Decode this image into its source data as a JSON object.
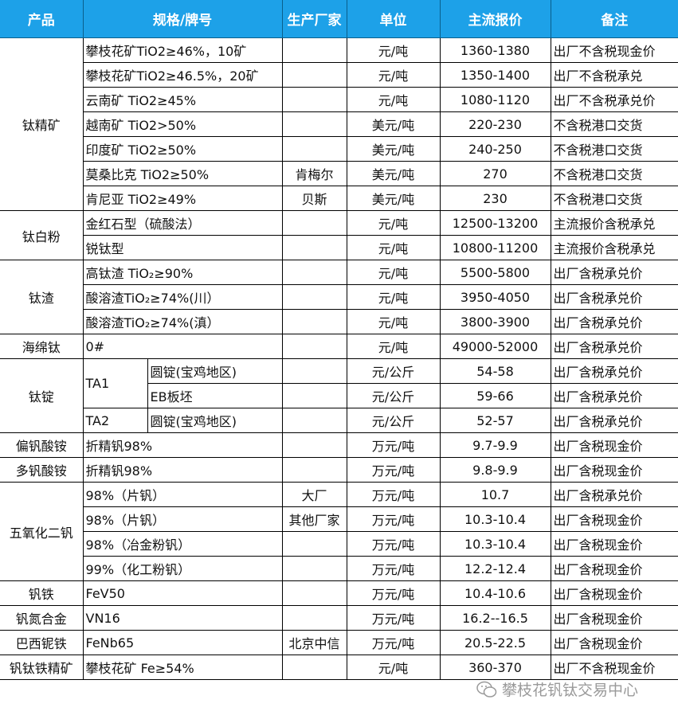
{
  "headers": [
    "产品",
    "规格/牌号",
    "生产厂家",
    "单位",
    "主流报价",
    "备注"
  ],
  "groups": [
    {
      "product": "钛精矿",
      "rows": [
        {
          "spec": "攀枝花矿TiO2≥46%，10矿",
          "maker": "",
          "unit": "元/吨",
          "price": "1360-1380",
          "note": "出厂不含税现金价"
        },
        {
          "spec": "攀枝花矿TiO2≥46.5%，20矿",
          "maker": "",
          "unit": "元/吨",
          "price": "1350-1400",
          "note": "出厂不含税承兑"
        },
        {
          "spec": "云南矿 TiO2≥45%",
          "maker": "",
          "unit": "元/吨",
          "price": "1080-1120",
          "note": "出厂不含税承兑价"
        },
        {
          "spec": "越南矿 TiO2>50%",
          "maker": "",
          "unit": "美元/吨",
          "price": "220-230",
          "note": "不含税港口交货"
        },
        {
          "spec": "印度矿 TiO2≥50%",
          "maker": "",
          "unit": "美元/吨",
          "price": "240-250",
          "note": "不含税港口交货"
        },
        {
          "spec": "莫桑比克 TiO2≥50%",
          "maker": "肯梅尔",
          "unit": "美元/吨",
          "price": "270",
          "note": "不含税港口交货"
        },
        {
          "spec": "肯尼亚 TiO2≥49%",
          "maker": "贝斯",
          "unit": "美元/吨",
          "price": "230",
          "note": "不含税港口交货"
        }
      ]
    },
    {
      "product": "钛白粉",
      "rows": [
        {
          "spec": "金红石型（硫酸法）",
          "maker": "",
          "unit": "元/吨",
          "price": "12500-13200",
          "note": "主流报价含税承兑"
        },
        {
          "spec": "锐钛型",
          "maker": "",
          "unit": "元/吨",
          "price": "10800-11200",
          "note": "主流报价含税承兑"
        }
      ]
    },
    {
      "product": "钛渣",
      "rows": [
        {
          "spec": "高钛渣 TiO₂≥90%",
          "maker": "",
          "unit": "元/吨",
          "price": "5500-5800",
          "note": "出厂含税承兑价"
        },
        {
          "spec": "酸溶渣TiO₂≥74%(川）",
          "maker": "",
          "unit": "元/吨",
          "price": "3950-4050",
          "note": "出厂含税承兑价"
        },
        {
          "spec": "酸溶渣TiO₂≥74%(滇）",
          "maker": "",
          "unit": "元/吨",
          "price": "3800-3900",
          "note": "出厂含税承兑价"
        }
      ]
    },
    {
      "product": "海绵钛",
      "rows": [
        {
          "spec": "0#",
          "maker": "",
          "unit": "元/吨",
          "price": "49000-52000",
          "note": "出厂含税承兑价"
        }
      ]
    },
    {
      "product": "钛锭",
      "subgroups": [
        {
          "grade": "TA1",
          "rows": [
            {
              "form": "圆锭(宝鸡地区)",
              "unit": "元/公斤",
              "price": "54-58",
              "note": "出厂含税承兑价"
            },
            {
              "form": "EB板坯",
              "unit": "元/公斤",
              "price": "59-66",
              "note": "出厂含税承兑价"
            }
          ]
        },
        {
          "grade": "TA2",
          "rows": [
            {
              "form": "圆锭(宝鸡地区)",
              "unit": "元/公斤",
              "price": "52-57",
              "note": "出厂含税承兑价"
            }
          ]
        }
      ]
    },
    {
      "product": "偏钒酸铵",
      "rows": [
        {
          "spec": "折精钒98%",
          "maker": "",
          "unit": "万元/吨",
          "price": "9.7-9.9",
          "note": "出厂含税现金价"
        }
      ]
    },
    {
      "product": "多钒酸铵",
      "rows": [
        {
          "spec": "折精钒98%",
          "maker": "",
          "unit": "万元/吨",
          "price": "9.8-9.9",
          "note": "出厂含税现金价"
        }
      ]
    },
    {
      "product": "五氧化二钒",
      "rows": [
        {
          "spec": "98%（片钒）",
          "maker": "大厂",
          "unit": "万元/吨",
          "price": "10.7",
          "note": "出厂含税承兑价"
        },
        {
          "spec": "98%（片钒）",
          "maker": "其他厂家",
          "unit": "万元/吨",
          "price": "10.3-10.4",
          "note": "出厂含税现金价"
        },
        {
          "spec": "98%（冶金粉钒）",
          "maker": "",
          "unit": "万元/吨",
          "price": "10.3-10.4",
          "note": "出厂含税现金价"
        },
        {
          "spec": "99%（化工粉钒）",
          "maker": "",
          "unit": "万元/吨",
          "price": "12.2-12.4",
          "note": "出厂含税现金价"
        }
      ]
    },
    {
      "product": "钒铁",
      "rows": [
        {
          "spec": "FeV50",
          "maker": "",
          "unit": "万元/吨",
          "price": "10.4-10.6",
          "note": "出厂含税现金价"
        }
      ]
    },
    {
      "product": "钒氮合金",
      "rows": [
        {
          "spec": "VN16",
          "maker": "",
          "unit": "万元/吨",
          "price": "16.2--16.5",
          "note": "出厂含税现金价"
        }
      ]
    },
    {
      "product": "巴西铌铁",
      "rows": [
        {
          "spec": "FeNb65",
          "maker": "北京中信",
          "unit": "万元/吨",
          "price": "20.5-22.5",
          "note": "出厂含税现金价"
        }
      ]
    },
    {
      "product": "钒钛铁精矿",
      "rows": [
        {
          "spec": "攀枝花矿 Fe≥54%",
          "maker": "",
          "unit": "元/吨",
          "price": "360-370",
          "note": "出厂不含税现金价"
        }
      ]
    }
  ],
  "watermark": {
    "text": "攀枝花钒钛交易中心",
    "icon": "wechat-icon"
  },
  "colors": {
    "header_bg": "#1da1e8",
    "header_text": "#ffffff"
  }
}
